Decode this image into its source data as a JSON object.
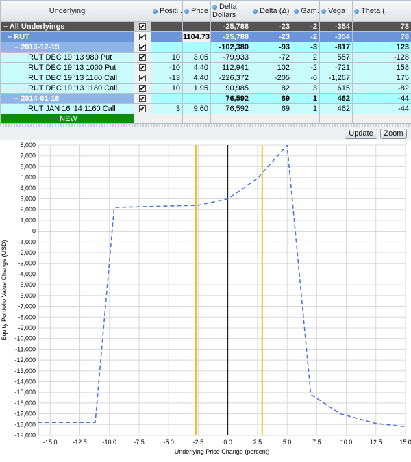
{
  "table": {
    "columns": [
      {
        "key": "underlying",
        "label": "Underlying",
        "dot": false
      },
      {
        "key": "check",
        "label": "",
        "dot": false
      },
      {
        "key": "position",
        "label": "Positi...",
        "dot": true
      },
      {
        "key": "price",
        "label": "Price",
        "dot": true
      },
      {
        "key": "delta_dollars",
        "label": "Delta Dollars",
        "dot": true
      },
      {
        "key": "delta",
        "label": "Delta (Δ)",
        "dot": true
      },
      {
        "key": "gamma",
        "label": "Gam...",
        "dot": true
      },
      {
        "key": "vega",
        "label": "Vega",
        "dot": true
      },
      {
        "key": "theta",
        "label": "Theta (...",
        "dot": true
      }
    ],
    "rows": {
      "all": {
        "label": "All Underlyings",
        "toggle": "–",
        "checked": "✔",
        "delta_dollars": "-25,788",
        "delta": "-23",
        "gamma": "-2",
        "vega": "-354",
        "theta": "78"
      },
      "rut": {
        "label": "RUT",
        "toggle": "–",
        "checked": "✔",
        "price": "1104.73",
        "delta_dollars": "-25,788",
        "delta": "-23",
        "gamma": "-2",
        "vega": "-354",
        "theta": "78"
      },
      "exp1": {
        "label": "2013-12-19",
        "toggle": "–",
        "checked": "✔",
        "delta_dollars": "-102,380",
        "delta": "-93",
        "gamma": "-3",
        "vega": "-817",
        "theta": "123"
      },
      "p1": {
        "label": "RUT DEC 19 '13 980 Put",
        "checked": "✔",
        "position": "10",
        "price": "3.05",
        "delta_dollars": "-79,933",
        "delta": "-72",
        "gamma": "2",
        "vega": "557",
        "theta": "-128"
      },
      "p2": {
        "label": "RUT DEC 19 '13 1000 Put",
        "checked": "✔",
        "position": "-10",
        "price": "4.40",
        "delta_dollars": "112,941",
        "delta": "102",
        "gamma": "-2",
        "vega": "-721",
        "theta": "158"
      },
      "p3": {
        "label": "RUT DEC 19 '13 1160 Call",
        "checked": "✔",
        "position": "-13",
        "price": "4.40",
        "delta_dollars": "-226,372",
        "delta": "-205",
        "gamma": "-6",
        "vega": "-1,267",
        "theta": "175"
      },
      "p4": {
        "label": "RUT DEC 19 '13 1180 Call",
        "checked": "✔",
        "position": "10",
        "price": "1.95",
        "delta_dollars": "90,985",
        "delta": "82",
        "gamma": "3",
        "vega": "615",
        "theta": "-82"
      },
      "exp2": {
        "label": "2014-01-16",
        "toggle": "–",
        "checked": "✔",
        "delta_dollars": "76,592",
        "delta": "69",
        "gamma": "1",
        "vega": "462",
        "theta": "-44"
      },
      "p5": {
        "label": "RUT JAN 16 '14 1160 Call",
        "checked": "✔",
        "position": "3",
        "price": "9.60",
        "delta_dollars": "76,592",
        "delta": "69",
        "gamma": "1",
        "vega": "462",
        "theta": "-44"
      },
      "new": {
        "label": "NEW"
      }
    }
  },
  "toolbar": {
    "update_label": "Update",
    "zoom_label": "Zoom"
  },
  "chart_data": {
    "type": "line",
    "xlabel": "Underlying Price Change (percent)",
    "ylabel": "Equity Portfolio Value Change (USD)",
    "xlim": [
      -16.0,
      15.0
    ],
    "ylim": [
      -19000,
      8000
    ],
    "xticks": [
      -15.0,
      -12.5,
      -10.0,
      -7.5,
      -5.0,
      -2.5,
      0.0,
      2.5,
      5.0,
      7.5,
      10.0,
      12.5,
      15.0
    ],
    "yticks": [
      8000,
      7000,
      6000,
      5000,
      4000,
      3000,
      2000,
      1000,
      0,
      -1000,
      -2000,
      -3000,
      -4000,
      -5000,
      -6000,
      -7000,
      -8000,
      -9000,
      -10000,
      -11000,
      -12000,
      -13000,
      -14000,
      -15000,
      -16000,
      -17000,
      -18000,
      -19000
    ],
    "grid": true,
    "series": [
      {
        "color": "#4a78d8",
        "style": "dashed",
        "x": [
          -16.0,
          -11.2,
          -9.6,
          -2.5,
          0.0,
          2.5,
          5.0,
          7.0,
          9.5,
          12.5,
          15.0
        ],
        "y": [
          -17800,
          -17800,
          2200,
          2400,
          3000,
          4900,
          8000,
          -15200,
          -17000,
          -17900,
          -18200
        ]
      }
    ],
    "vlines": [
      {
        "x": -2.7,
        "color": "#f0c020"
      },
      {
        "x": 2.9,
        "color": "#f0c020"
      }
    ],
    "zero_axis_color": "#000000",
    "grid_color": "#d8d8d8"
  }
}
